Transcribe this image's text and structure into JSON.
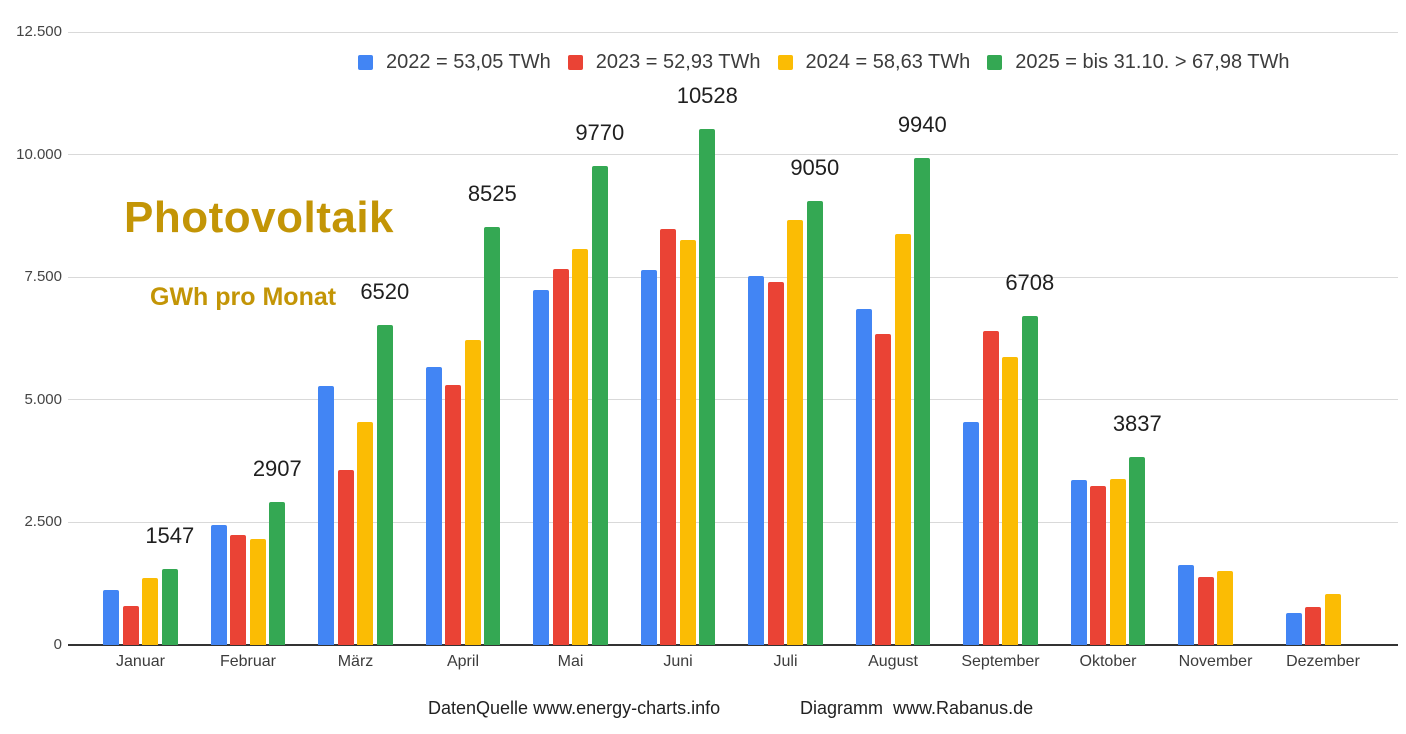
{
  "title": "Photovoltaik",
  "subtitle": "GWh pro Monat",
  "footer": {
    "source": "DatenQuelle www.energy-charts.info",
    "diagram": "Diagramm  www.Rabanus.de"
  },
  "colors": {
    "series_2022": "#4285F4",
    "series_2023": "#EA4335",
    "series_2024": "#FBBC04",
    "series_2025": "#34A853",
    "title_gold": "#C39506",
    "grid": "#D9D9D9",
    "axis": "#333333"
  },
  "legend": [
    {
      "name": "2022",
      "label": "2022 = 53,05 TWh",
      "color": "#4285F4"
    },
    {
      "name": "2023",
      "label": "2023 = 52,93 TWh",
      "color": "#EA4335"
    },
    {
      "name": "2024",
      "label": "2024 = 58,63 TWh",
      "color": "#FBBC04"
    },
    {
      "name": "2025",
      "label": "2025 = bis 31.10. > 67,98 TWh",
      "color": "#34A853"
    }
  ],
  "chart_data": {
    "type": "bar",
    "title": "Photovoltaik",
    "ylabel": "GWh pro Monat",
    "ylim": [
      0,
      12500
    ],
    "grid": true,
    "legend_position": "top",
    "y_ticks": [
      {
        "value": 0,
        "label": "0"
      },
      {
        "value": 2500,
        "label": "2.500"
      },
      {
        "value": 5000,
        "label": "5.000"
      },
      {
        "value": 7500,
        "label": "7.500"
      },
      {
        "value": 10000,
        "label": "10.000"
      },
      {
        "value": 12500,
        "label": "12.500"
      }
    ],
    "categories": [
      "Januar",
      "Februar",
      "März",
      "April",
      "Mai",
      "Juni",
      "Juli",
      "August",
      "September",
      "Oktober",
      "November",
      "Dezember"
    ],
    "series": [
      {
        "name": "2022",
        "color": "#4285F4",
        "values": [
          1130,
          2450,
          5290,
          5660,
          7250,
          7650,
          7530,
          6860,
          4540,
          3360,
          1630,
          650
        ]
      },
      {
        "name": "2023",
        "color": "#EA4335",
        "values": [
          800,
          2250,
          3560,
          5300,
          7660,
          8480,
          7410,
          6350,
          6400,
          3250,
          1380,
          780
        ]
      },
      {
        "name": "2024",
        "color": "#FBBC04",
        "values": [
          1360,
          2170,
          4550,
          6220,
          8070,
          8250,
          8670,
          8390,
          5870,
          3390,
          1500,
          1050
        ]
      },
      {
        "name": "2025",
        "color": "#34A853",
        "values": [
          1547,
          2907,
          6520,
          8525,
          9770,
          10528,
          9050,
          9940,
          6708,
          3837,
          null,
          null
        ]
      }
    ],
    "bar_labels": [
      "1547",
      "2907",
      "6520",
      "8525",
      "9770",
      "10528",
      "9050",
      "9940",
      "6708",
      "3837",
      null,
      null
    ]
  }
}
